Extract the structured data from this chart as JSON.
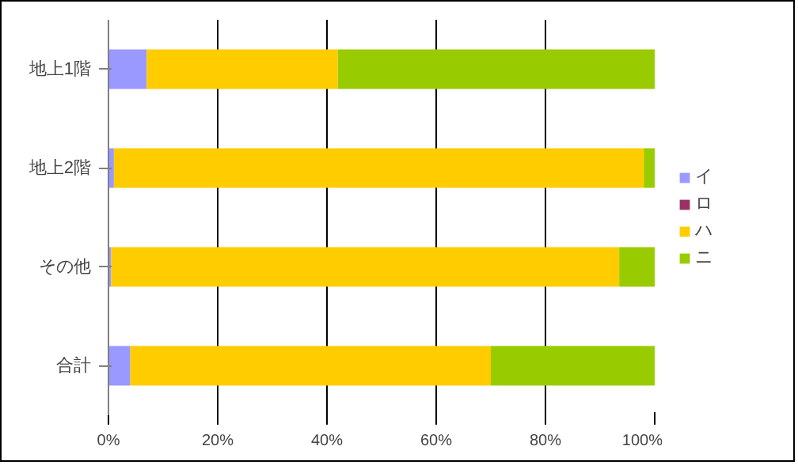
{
  "chart_data": {
    "type": "bar",
    "orientation": "horizontal",
    "stacked": true,
    "categories": [
      "地上1階",
      "地上2階",
      "その他",
      "合計"
    ],
    "series": [
      {
        "name": "イ",
        "color": "#9999ff",
        "values": [
          7,
          1,
          0.5,
          4
        ]
      },
      {
        "name": "ロ",
        "color": "#993366",
        "values": [
          0,
          0,
          0,
          0
        ]
      },
      {
        "name": "ハ",
        "color": "#ffcc00",
        "values": [
          35,
          97,
          93,
          66
        ]
      },
      {
        "name": "ニ",
        "color": "#99cc00",
        "values": [
          58,
          2,
          6.5,
          30
        ]
      }
    ],
    "xlim": [
      0,
      100
    ],
    "xticks": [
      {
        "value": 0,
        "label": "0%"
      },
      {
        "value": 20,
        "label": "20%"
      },
      {
        "value": 40,
        "label": "40%"
      },
      {
        "value": 60,
        "label": "60%"
      },
      {
        "value": 80,
        "label": "80%"
      },
      {
        "value": 100,
        "label": "100%"
      }
    ],
    "grid": "x",
    "legend": "right"
  }
}
